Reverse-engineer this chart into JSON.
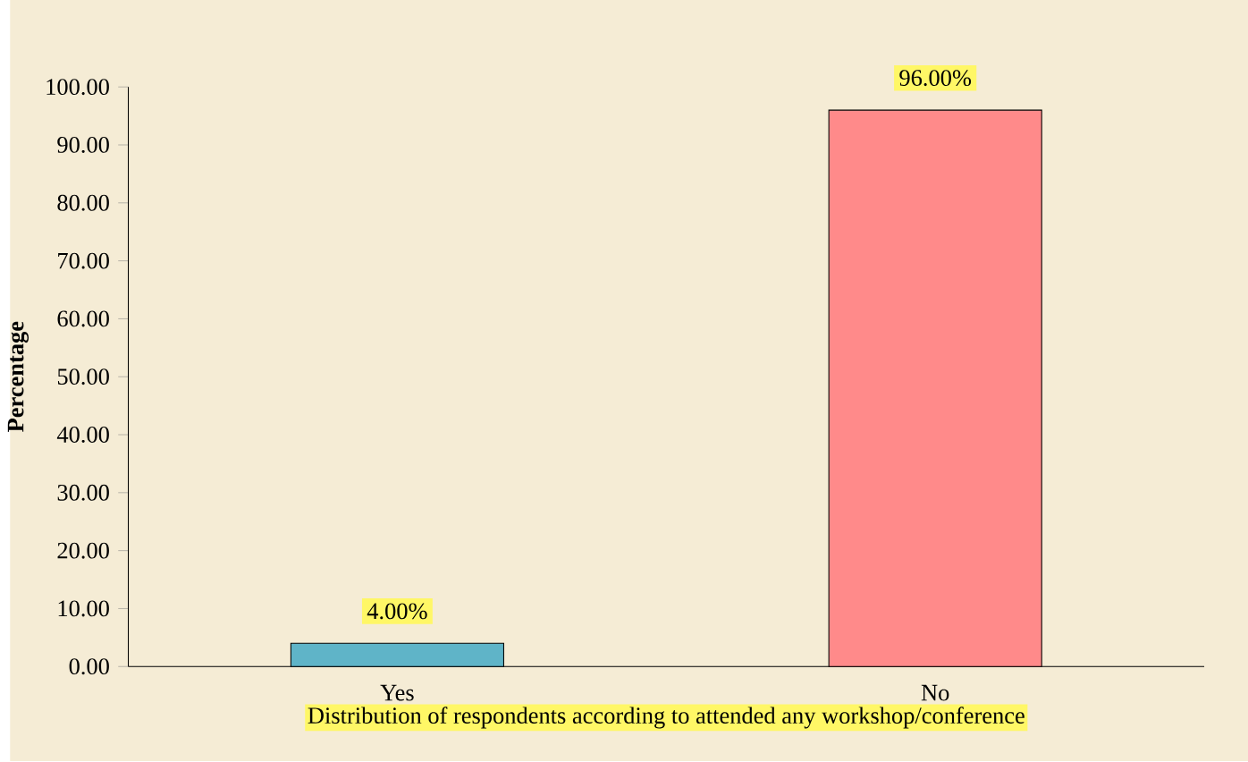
{
  "chart_data": {
    "type": "bar",
    "xlabel": "Distribution of respondents according to attended any workshop/conference",
    "ylabel": "Percentage",
    "categories": [
      "Yes",
      "No"
    ],
    "values": [
      4,
      96
    ],
    "colors": [
      "#5fb4c8",
      "#ff8a8a"
    ],
    "value_labels": [
      "4.00%",
      "96.00%"
    ],
    "ylim": [
      0,
      100
    ],
    "yticks": [
      {
        "value": 0,
        "label": "0.00"
      },
      {
        "value": 10,
        "label": "10.00"
      },
      {
        "value": 20,
        "label": "20.00"
      },
      {
        "value": 30,
        "label": "30.00"
      },
      {
        "value": 40,
        "label": "40.00"
      },
      {
        "value": 50,
        "label": "50.00"
      },
      {
        "value": 60,
        "label": "60.00"
      },
      {
        "value": 70,
        "label": "70.00"
      },
      {
        "value": 80,
        "label": "80.00"
      },
      {
        "value": 90,
        "label": "90.00"
      },
      {
        "value": 100,
        "label": "100.00"
      }
    ],
    "grid": false
  }
}
